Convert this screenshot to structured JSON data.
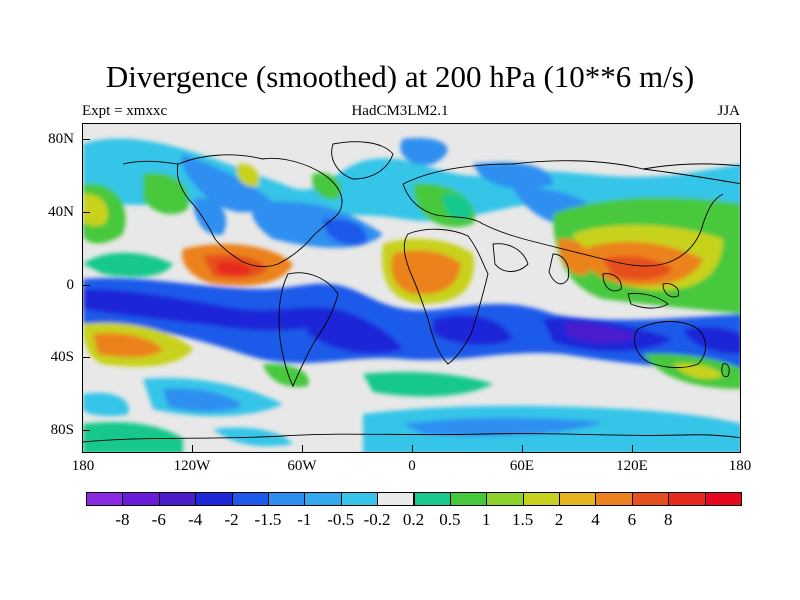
{
  "title": "Divergence (smoothed) at 200 hPa (10**6 m/s)",
  "expt": "Expt = xmxxc",
  "model": "HadCM3LM2.1",
  "season": "JJA",
  "lat_labels": [
    "80N",
    "40N",
    "0",
    "40S",
    "80S"
  ],
  "lon_labels": [
    "180",
    "120W",
    "60W",
    "0",
    "60E",
    "120E",
    "180"
  ],
  "colorbar": {
    "colors": [
      "#8a2be2",
      "#6a1cd8",
      "#4b1ecc",
      "#1e28d8",
      "#1e5aea",
      "#2d8ff0",
      "#32a8ee",
      "#36c5e8",
      "#eaeaea",
      "#18c88c",
      "#46c83c",
      "#8cd22a",
      "#c8d21e",
      "#e6b41e",
      "#eb821e",
      "#e6501e",
      "#e62a1e",
      "#e6081e"
    ],
    "labels": [
      "-8",
      "-6",
      "-4",
      "-2",
      "-1.5",
      "-1",
      "-0.5",
      "-0.2",
      "0.2",
      "0.5",
      "1",
      "1.5",
      "2",
      "4",
      "6",
      "8"
    ]
  },
  "colors": {
    "background": "#ffffff",
    "neutral": "#e8e8e8",
    "coast": "#000000"
  }
}
